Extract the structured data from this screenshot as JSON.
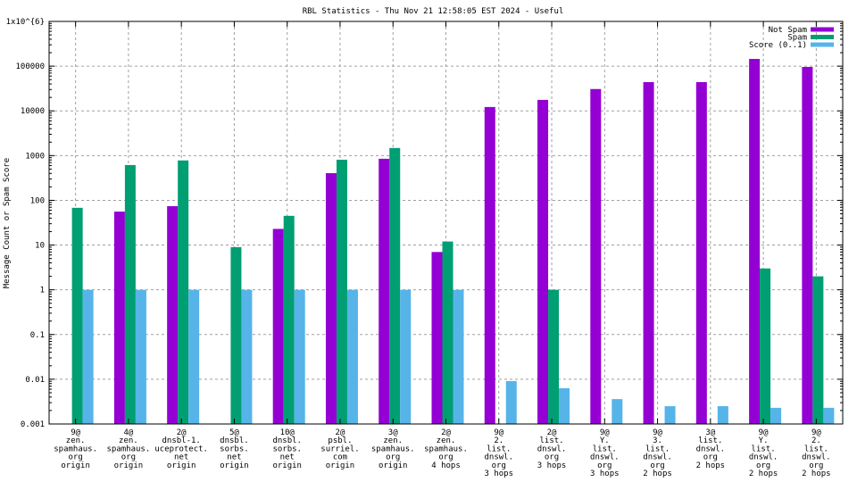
{
  "chart_data": {
    "type": "bar",
    "title": "RBL Statistics - Thu Nov 21 12:58:05 EST 2024 - Useful",
    "xlabel": "",
    "ylabel": "Message Count or Spam Score",
    "yscale": "log",
    "ylim": [
      0.001,
      1000000
    ],
    "grid": true,
    "legend_position": "top-right",
    "y_ticks": [
      {
        "value": 1000000,
        "label": "1x10^{6}"
      },
      {
        "value": 100000,
        "label": "100000"
      },
      {
        "value": 10000,
        "label": "10000"
      },
      {
        "value": 1000,
        "label": "1000"
      },
      {
        "value": 100,
        "label": "100"
      },
      {
        "value": 10,
        "label": "10"
      },
      {
        "value": 1,
        "label": "1"
      },
      {
        "value": 0.1,
        "label": "0.1"
      },
      {
        "value": 0.01,
        "label": "0.01"
      },
      {
        "value": 0.001,
        "label": "0.001"
      }
    ],
    "categories": [
      [
        "9@",
        "zen.",
        "spamhaus.",
        "org",
        "origin"
      ],
      [
        "4@",
        "zen.",
        "spamhaus.",
        "org",
        "origin"
      ],
      [
        "2@",
        "dnsbl-1.",
        "uceprotect.",
        "net",
        "origin"
      ],
      [
        "5@",
        "dnsbl.",
        "sorbs.",
        "net",
        "origin"
      ],
      [
        "10@",
        "dnsbl.",
        "sorbs.",
        "net",
        "origin"
      ],
      [
        "2@",
        "psbl.",
        "surriel.",
        "com",
        "origin"
      ],
      [
        "3@",
        "zen.",
        "spamhaus.",
        "org",
        "origin"
      ],
      [
        "2@",
        "zen.",
        "spamhaus.",
        "org",
        "4 hops"
      ],
      [
        "9@",
        "2.",
        "list.",
        "dnswl.",
        "org",
        "3 hops"
      ],
      [
        "2@",
        "list.",
        "dnswl.",
        "org",
        "3 hops"
      ],
      [
        "9@",
        "Y.",
        "list.",
        "dnswl.",
        "org",
        "3 hops"
      ],
      [
        "9@",
        "3.",
        "list.",
        "dnswl.",
        "org",
        "2 hops"
      ],
      [
        "3@",
        "list.",
        "dnswl.",
        "org",
        "2 hops"
      ],
      [
        "9@",
        "Y.",
        "list.",
        "dnswl.",
        "org",
        "2 hops"
      ],
      [
        "9@",
        "2.",
        "list.",
        "dnswl.",
        "org",
        "2 hops"
      ]
    ],
    "series": [
      {
        "name": "Not Spam",
        "color": "#9400d3",
        "values": [
          null,
          56,
          74,
          null,
          23,
          405,
          850,
          7,
          12200,
          17600,
          30800,
          44000,
          44000,
          145000,
          96000
        ]
      },
      {
        "name": "Spam",
        "color": "#009e73",
        "values": [
          68,
          615,
          780,
          9,
          45,
          810,
          1480,
          12,
          null,
          1,
          null,
          null,
          null,
          3,
          2
        ]
      },
      {
        "name": "Score (0..1)",
        "color": "#56b4e9",
        "values": [
          1,
          1,
          1,
          1,
          1,
          1,
          1,
          1,
          0.0091,
          0.0063,
          0.0036,
          0.0025,
          0.0025,
          0.0023,
          0.0023
        ]
      }
    ]
  }
}
